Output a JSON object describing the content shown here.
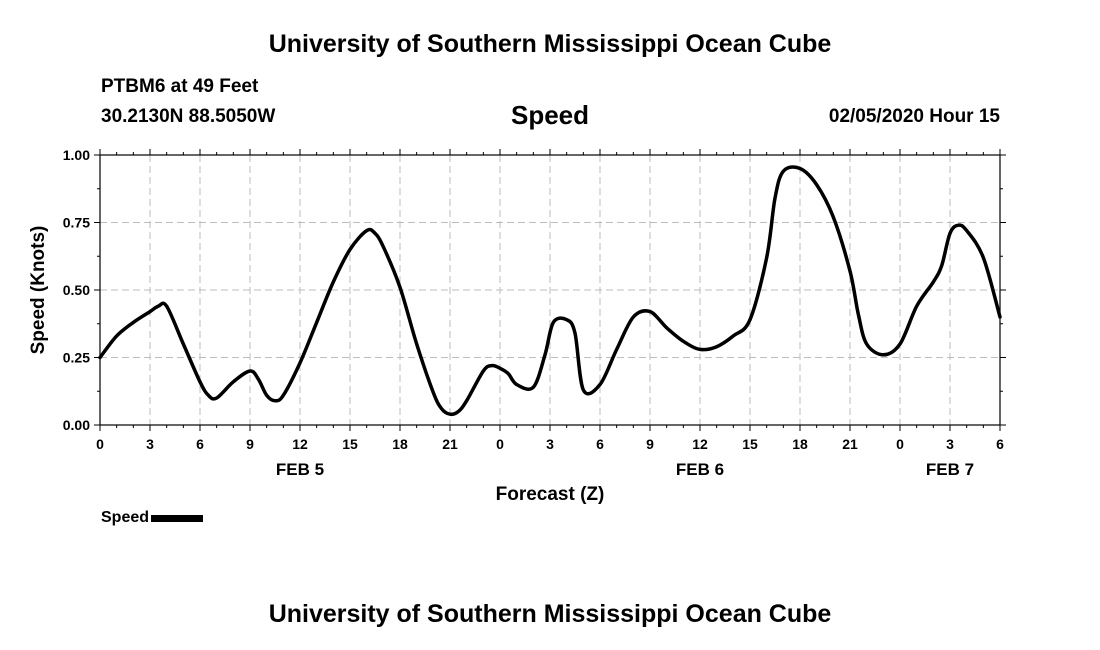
{
  "header": {
    "top_title": "University of Southern Mississippi Ocean Cube",
    "bottom_title": "University of Southern Mississippi Ocean Cube",
    "station": "PTBM6 at 49 Feet",
    "coordinates": "30.2130N 88.5050W",
    "datetime": "02/05/2020 Hour 15"
  },
  "chart_data": {
    "type": "line",
    "title": "Speed",
    "xlabel": "Forecast (Z)",
    "ylabel": "Speed (Knots)",
    "ylim": [
      0,
      1
    ],
    "xlim": [
      0,
      54
    ],
    "grid": true,
    "legend_position": "bottom-left",
    "x_unit": "hours since FEB 5 00Z",
    "yticks": [
      "0.00",
      "0.25",
      "0.50",
      "0.75",
      "1.00"
    ],
    "xticks": [
      {
        "x": 0,
        "label": "0"
      },
      {
        "x": 3,
        "label": "3"
      },
      {
        "x": 6,
        "label": "6"
      },
      {
        "x": 9,
        "label": "9"
      },
      {
        "x": 12,
        "label": "12"
      },
      {
        "x": 15,
        "label": "15"
      },
      {
        "x": 18,
        "label": "18"
      },
      {
        "x": 21,
        "label": "21"
      },
      {
        "x": 24,
        "label": "0"
      },
      {
        "x": 27,
        "label": "3"
      },
      {
        "x": 30,
        "label": "6"
      },
      {
        "x": 33,
        "label": "9"
      },
      {
        "x": 36,
        "label": "12"
      },
      {
        "x": 39,
        "label": "15"
      },
      {
        "x": 42,
        "label": "18"
      },
      {
        "x": 45,
        "label": "21"
      },
      {
        "x": 48,
        "label": "0"
      },
      {
        "x": 51,
        "label": "3"
      },
      {
        "x": 54,
        "label": "6"
      }
    ],
    "date_labels": [
      {
        "x": 12,
        "label": "FEB 5"
      },
      {
        "x": 36,
        "label": "FEB 6"
      },
      {
        "x": 51,
        "label": "FEB 7"
      }
    ],
    "series": [
      {
        "name": "Speed",
        "color": "#000000",
        "x": [
          0,
          1,
          2,
          3,
          3.5,
          4,
          5,
          6,
          6.5,
          7,
          8,
          9,
          9.5,
          10,
          10.5,
          11,
          12,
          13,
          14,
          15,
          16,
          16.5,
          17,
          18,
          19,
          20,
          20.5,
          21,
          21.5,
          22,
          23,
          23.5,
          24,
          24.5,
          25,
          26,
          26.7,
          27.2,
          28,
          28.5,
          29,
          30,
          31,
          32,
          33,
          34,
          35,
          36,
          37,
          38,
          39,
          40,
          40.5,
          41,
          42,
          43,
          44,
          45,
          45.5,
          46,
          47,
          48,
          49,
          50,
          50.5,
          51,
          51.5,
          52,
          53,
          54
        ],
        "y": [
          0.25,
          0.33,
          0.38,
          0.42,
          0.44,
          0.44,
          0.3,
          0.16,
          0.11,
          0.1,
          0.16,
          0.2,
          0.17,
          0.11,
          0.09,
          0.11,
          0.23,
          0.38,
          0.53,
          0.65,
          0.72,
          0.71,
          0.66,
          0.51,
          0.3,
          0.12,
          0.06,
          0.04,
          0.05,
          0.09,
          0.2,
          0.22,
          0.21,
          0.19,
          0.15,
          0.14,
          0.26,
          0.38,
          0.39,
          0.34,
          0.13,
          0.15,
          0.28,
          0.4,
          0.42,
          0.36,
          0.31,
          0.28,
          0.29,
          0.33,
          0.39,
          0.62,
          0.84,
          0.94,
          0.95,
          0.89,
          0.77,
          0.57,
          0.41,
          0.3,
          0.26,
          0.3,
          0.44,
          0.53,
          0.59,
          0.71,
          0.74,
          0.72,
          0.62,
          0.4
        ]
      }
    ]
  }
}
